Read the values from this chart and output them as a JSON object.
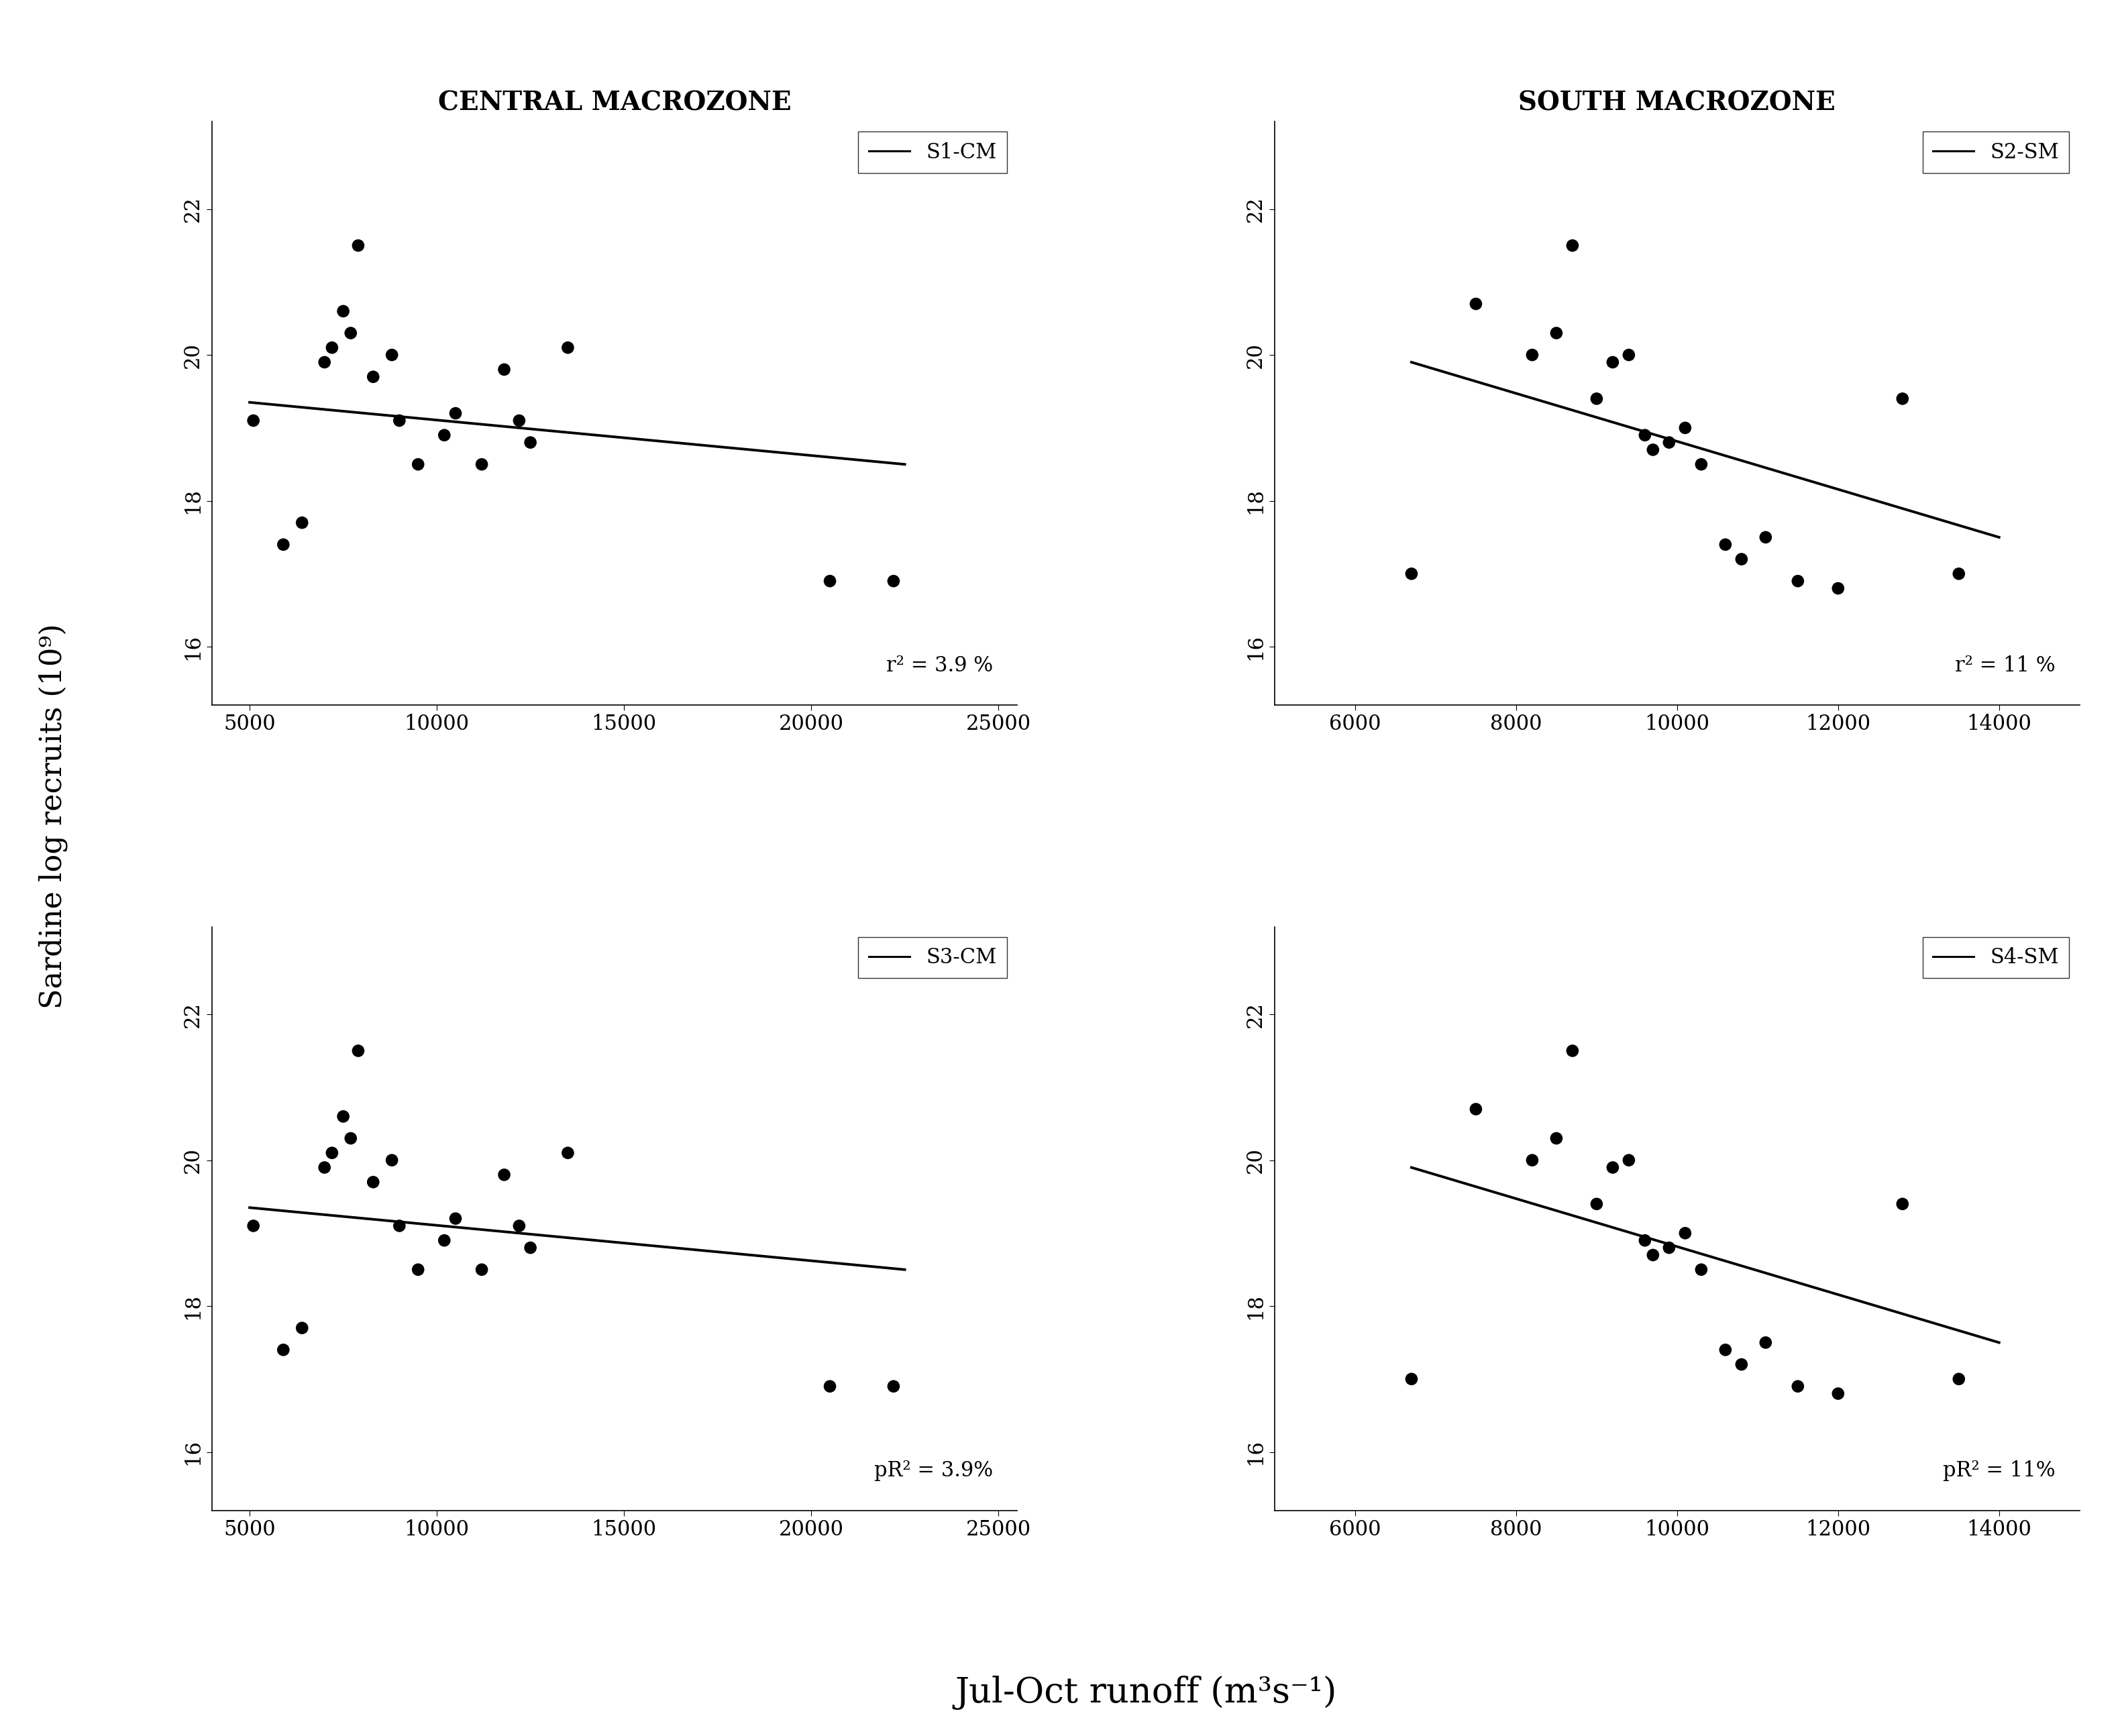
{
  "panels": [
    {
      "title": "CENTRAL MACROZONE",
      "legend_label": "S1-CM",
      "r2_text": "r² = 3.9 %",
      "xlim": [
        4000,
        25500
      ],
      "ylim": [
        15.2,
        23.2
      ],
      "xticks": [
        5000,
        10000,
        15000,
        20000,
        25000
      ],
      "yticks": [
        16,
        18,
        20,
        22
      ],
      "x_data": [
        5100,
        5900,
        6400,
        7000,
        7200,
        7500,
        7700,
        7900,
        8300,
        8800,
        9000,
        9500,
        10200,
        10500,
        11200,
        11800,
        12200,
        12500,
        13500,
        20500,
        22200
      ],
      "y_data": [
        19.1,
        17.4,
        17.7,
        19.9,
        20.1,
        20.6,
        20.3,
        21.5,
        19.7,
        20.0,
        19.1,
        18.5,
        18.9,
        19.2,
        18.5,
        19.8,
        19.1,
        18.8,
        20.1,
        16.9,
        16.9
      ],
      "line_x": [
        5000,
        22500
      ],
      "line_y": [
        19.35,
        18.5
      ]
    },
    {
      "title": "SOUTH MACROZONE",
      "legend_label": "S2-SM",
      "r2_text": "r² = 11 %",
      "xlim": [
        5000,
        15000
      ],
      "ylim": [
        15.2,
        23.2
      ],
      "xticks": [
        6000,
        8000,
        10000,
        12000,
        14000
      ],
      "yticks": [
        16,
        18,
        20,
        22
      ],
      "x_data": [
        6700,
        7500,
        8200,
        8500,
        8700,
        9000,
        9200,
        9400,
        9600,
        9700,
        9900,
        10100,
        10300,
        10600,
        10800,
        11100,
        11500,
        12000,
        12800,
        13500
      ],
      "y_data": [
        17.0,
        20.7,
        20.0,
        20.3,
        21.5,
        19.4,
        19.9,
        20.0,
        18.9,
        18.7,
        18.8,
        19.0,
        18.5,
        17.4,
        17.2,
        17.5,
        16.9,
        16.8,
        19.4,
        17.0
      ],
      "line_x": [
        6700,
        14000
      ],
      "line_y": [
        19.9,
        17.5
      ]
    },
    {
      "title": "",
      "legend_label": "S3-CM",
      "r2_text": "pR² = 3.9%",
      "xlim": [
        4000,
        25500
      ],
      "ylim": [
        15.2,
        23.2
      ],
      "xticks": [
        5000,
        10000,
        15000,
        20000,
        25000
      ],
      "yticks": [
        16,
        18,
        20,
        22
      ],
      "x_data": [
        5100,
        5900,
        6400,
        7000,
        7200,
        7500,
        7700,
        7900,
        8300,
        8800,
        9000,
        9500,
        10200,
        10500,
        11200,
        11800,
        12200,
        12500,
        13500,
        20500,
        22200
      ],
      "y_data": [
        19.1,
        17.4,
        17.7,
        19.9,
        20.1,
        20.6,
        20.3,
        21.5,
        19.7,
        20.0,
        19.1,
        18.5,
        18.9,
        19.2,
        18.5,
        19.8,
        19.1,
        18.8,
        20.1,
        16.9,
        16.9
      ],
      "line_x": [
        5000,
        22500
      ],
      "line_y": [
        19.35,
        18.5
      ]
    },
    {
      "title": "",
      "legend_label": "S4-SM",
      "r2_text": "pR² = 11%",
      "xlim": [
        5000,
        15000
      ],
      "ylim": [
        15.2,
        23.2
      ],
      "xticks": [
        6000,
        8000,
        10000,
        12000,
        14000
      ],
      "yticks": [
        16,
        18,
        20,
        22
      ],
      "x_data": [
        6700,
        7500,
        8200,
        8500,
        8700,
        9000,
        9200,
        9400,
        9600,
        9700,
        9900,
        10100,
        10300,
        10600,
        10800,
        11100,
        11500,
        12000,
        12800,
        13500
      ],
      "y_data": [
        17.0,
        20.7,
        20.0,
        20.3,
        21.5,
        19.4,
        19.9,
        20.0,
        18.9,
        18.7,
        18.8,
        19.0,
        18.5,
        17.4,
        17.2,
        17.5,
        16.9,
        16.8,
        19.4,
        17.0
      ],
      "line_x": [
        6700,
        14000
      ],
      "line_y": [
        19.9,
        17.5
      ]
    }
  ],
  "col_titles": [
    "CENTRAL MACROZONE",
    "SOUTH MACROZONE"
  ],
  "ylabel": "Sardine log recruits (10⁹)",
  "xlabel": "Jul-Oct runoff (m³s⁻¹)",
  "background_color": "#ffffff",
  "point_color": "#000000",
  "line_color": "#000000",
  "point_size": 180,
  "line_width": 2.8,
  "title_fontsize": 28,
  "tick_fontsize": 22,
  "legend_fontsize": 22,
  "annot_fontsize": 22,
  "ylabel_fontsize": 32,
  "xlabel_fontsize": 38
}
